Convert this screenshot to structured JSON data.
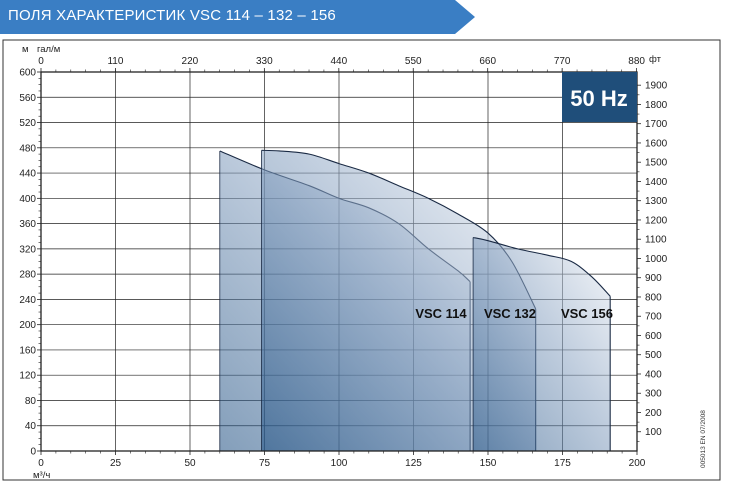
{
  "header": {
    "title": "ПОЛЯ ХАРАКТЕРИСТИК VSC 114 – 132 – 156",
    "color": "#3a7ec4"
  },
  "badge": {
    "text": "50 Hz",
    "bg": "#1f4e7a"
  },
  "side_code": "005013 EN 07/2008",
  "chart_data": {
    "type": "area",
    "x_bottom": {
      "unit": "м³/ч",
      "ticks": [
        0,
        25,
        50,
        75,
        100,
        125,
        150,
        175,
        200
      ],
      "range": [
        0,
        200
      ]
    },
    "x_top": {
      "unit": "гал/м",
      "ticks": [
        0,
        110,
        220,
        330,
        440,
        550,
        660,
        770,
        880
      ]
    },
    "y_left": {
      "unit": "м",
      "ticks": [
        0,
        40,
        80,
        120,
        160,
        200,
        240,
        280,
        320,
        360,
        400,
        440,
        480,
        520,
        560,
        600
      ],
      "range": [
        0,
        600
      ]
    },
    "y_right": {
      "unit": "фт",
      "ticks": [
        100,
        200,
        300,
        400,
        500,
        600,
        700,
        800,
        900,
        1000,
        1100,
        1200,
        1300,
        1400,
        1500,
        1600,
        1700,
        1800,
        1900
      ]
    },
    "grid": true,
    "series": [
      {
        "name": "VSC 114",
        "points": [
          [
            60,
            475
          ],
          [
            75,
            445
          ],
          [
            90,
            420
          ],
          [
            100,
            400
          ],
          [
            110,
            385
          ],
          [
            120,
            360
          ],
          [
            130,
            320
          ],
          [
            140,
            285
          ],
          [
            144,
            268
          ]
        ],
        "min_flow": 60,
        "max_flow": 144
      },
      {
        "name": "VSC 132",
        "points": [
          [
            74,
            476
          ],
          [
            80,
            475
          ],
          [
            90,
            470
          ],
          [
            100,
            455
          ],
          [
            110,
            440
          ],
          [
            120,
            420
          ],
          [
            130,
            400
          ],
          [
            140,
            375
          ],
          [
            150,
            345
          ],
          [
            158,
            300
          ],
          [
            166,
            225
          ]
        ],
        "min_flow": 74,
        "max_flow": 166
      },
      {
        "name": "VSC 156",
        "points": [
          [
            145,
            338
          ],
          [
            150,
            333
          ],
          [
            160,
            320
          ],
          [
            170,
            310
          ],
          [
            178,
            300
          ],
          [
            185,
            275
          ],
          [
            191,
            245
          ]
        ],
        "min_flow": 145,
        "max_flow": 191
      }
    ]
  }
}
